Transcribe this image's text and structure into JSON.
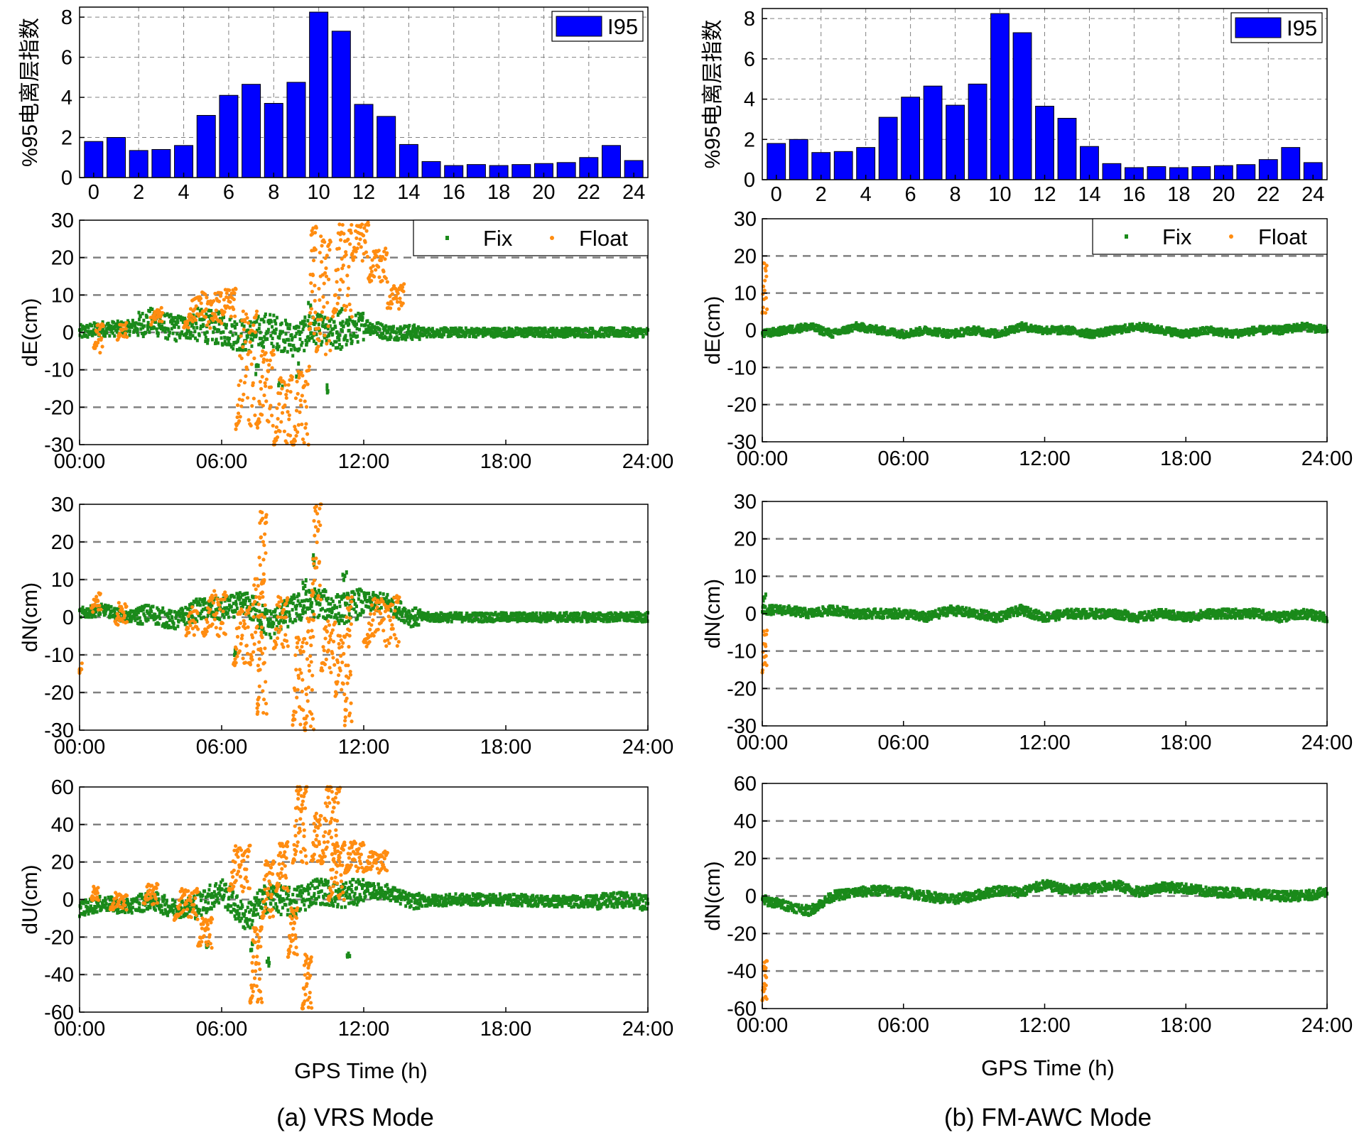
{
  "figure": {
    "caption_left": "(a) VRS Mode",
    "caption_right": "(b) FM-AWC Mode",
    "xlabel": "GPS Time (h)"
  },
  "colors": {
    "bar": "#0000ff",
    "fix": "#1a8a1a",
    "float": "#ff8c10",
    "grid": "#808080"
  },
  "chart_data": [
    {
      "id": "a-bar",
      "type": "bar",
      "panel": "left",
      "row": 0,
      "ylabel": "%95电离层指数",
      "categories": [
        "0",
        "1",
        "2",
        "3",
        "4",
        "5",
        "6",
        "7",
        "8",
        "9",
        "10",
        "11",
        "12",
        "13",
        "14",
        "15",
        "16",
        "17",
        "18",
        "19",
        "20",
        "21",
        "22",
        "23",
        "24"
      ],
      "series": [
        {
          "name": "I95",
          "values": [
            1.8,
            2.0,
            1.35,
            1.4,
            1.6,
            3.1,
            4.1,
            4.65,
            3.7,
            4.75,
            8.25,
            7.3,
            3.65,
            3.05,
            1.65,
            0.8,
            0.6,
            0.65,
            0.6,
            0.65,
            0.7,
            0.75,
            1.0,
            1.6,
            0.85
          ]
        }
      ],
      "xticks": [
        "0",
        "2",
        "4",
        "6",
        "8",
        "10",
        "12",
        "14",
        "16",
        "18",
        "20",
        "22",
        "24"
      ],
      "ylim": [
        0,
        8.5
      ],
      "yticks": [
        0,
        2,
        4,
        6,
        8
      ]
    },
    {
      "id": "a-de",
      "type": "scatter",
      "panel": "left",
      "row": 1,
      "ylabel": "dE(cm)",
      "xlim": [
        0,
        24
      ],
      "ylim": [
        -30,
        30
      ],
      "yticks": [
        -30,
        -20,
        -10,
        0,
        10,
        20,
        30
      ],
      "xticks": [
        "00:00",
        "06:00",
        "12:00",
        "18:00",
        "24:00"
      ],
      "legend": [
        "Fix",
        "Float"
      ],
      "fix_profile": [
        [
          0,
          0
        ],
        [
          1,
          1
        ],
        [
          2,
          1
        ],
        [
          3,
          3
        ],
        [
          4,
          1
        ],
        [
          5,
          2
        ],
        [
          6,
          1
        ],
        [
          7,
          -1
        ],
        [
          8,
          1
        ],
        [
          9,
          -2
        ],
        [
          10,
          1
        ],
        [
          11,
          -1
        ],
        [
          12,
          2
        ],
        [
          13,
          0
        ],
        [
          14,
          0
        ],
        [
          16,
          0
        ],
        [
          18,
          0
        ],
        [
          20,
          0
        ],
        [
          22,
          0
        ],
        [
          24,
          0
        ]
      ],
      "fix_noise": [
        2.0,
        3.5,
        4.5,
        4.5,
        4.0,
        2.0,
        1.2,
        1.2,
        1.2,
        1.2
      ],
      "fix_spikes": [
        [
          7.5,
          -10
        ],
        [
          8.5,
          -15
        ],
        [
          9.2,
          -10
        ],
        [
          10.5,
          -14
        ],
        [
          9.7,
          6
        ],
        [
          11.0,
          5
        ]
      ],
      "float_ranges": [
        [
          0.6,
          1.0,
          -5,
          2
        ],
        [
          1.6,
          2.0,
          -1,
          2
        ],
        [
          3,
          3.5,
          3,
          6
        ],
        [
          4.4,
          6,
          2,
          10
        ],
        [
          6,
          6.6,
          5,
          11
        ],
        [
          6.6,
          7.5,
          -25,
          5
        ],
        [
          7.5,
          8.2,
          -25,
          -5
        ],
        [
          8.2,
          9,
          -30,
          -12
        ],
        [
          9.0,
          9.7,
          -30,
          -10
        ],
        [
          9.7,
          10.0,
          0,
          28
        ],
        [
          10.0,
          10.6,
          -5,
          25
        ],
        [
          10.7,
          11.5,
          5,
          28
        ],
        [
          11.5,
          12.2,
          20,
          29
        ],
        [
          12.2,
          13.0,
          14,
          22
        ],
        [
          13.0,
          13.7,
          7,
          12
        ]
      ]
    },
    {
      "id": "a-dn",
      "type": "scatter",
      "panel": "left",
      "row": 2,
      "ylabel": "dN(cm)",
      "xlim": [
        0,
        24
      ],
      "ylim": [
        -30,
        30
      ],
      "yticks": [
        -30,
        -20,
        -10,
        0,
        10,
        20,
        30
      ],
      "xticks": [
        "00:00",
        "06:00",
        "12:00",
        "18:00",
        "24:00"
      ],
      "fix_profile": [
        [
          0,
          1
        ],
        [
          1,
          2
        ],
        [
          2,
          0
        ],
        [
          3,
          1
        ],
        [
          4,
          -1
        ],
        [
          5,
          2
        ],
        [
          6,
          2
        ],
        [
          7,
          4
        ],
        [
          8,
          -2
        ],
        [
          9,
          2
        ],
        [
          10,
          4
        ],
        [
          11,
          2
        ],
        [
          12,
          4
        ],
        [
          13,
          4
        ],
        [
          14,
          0
        ],
        [
          16,
          0
        ],
        [
          18,
          0
        ],
        [
          20,
          0
        ],
        [
          22,
          0
        ],
        [
          24,
          0
        ]
      ],
      "fix_noise": [
        1.5,
        2.5,
        3.0,
        4.0,
        4.0,
        2.5,
        1.2,
        1.2,
        1.2,
        1.2
      ],
      "fix_spikes": [
        [
          6.5,
          -10
        ],
        [
          9.5,
          8
        ],
        [
          9.9,
          16
        ],
        [
          11.2,
          10
        ]
      ],
      "float_ranges": [
        [
          -0.1,
          0.1,
          -15,
          -13
        ],
        [
          0.5,
          0.9,
          2,
          6
        ],
        [
          1.5,
          2.0,
          -2,
          3
        ],
        [
          4.5,
          5.0,
          -4,
          2
        ],
        [
          5.2,
          6.2,
          -5,
          6
        ],
        [
          6.5,
          7.2,
          -13,
          2
        ],
        [
          7.2,
          7.8,
          -12,
          10
        ],
        [
          7.5,
          7.9,
          -25,
          28
        ],
        [
          8.2,
          8.8,
          -8,
          5
        ],
        [
          9.0,
          9.5,
          -28,
          -5
        ],
        [
          9.5,
          9.9,
          -30,
          0
        ],
        [
          9.8,
          10.2,
          5,
          30
        ],
        [
          10.2,
          10.8,
          -14,
          -2
        ],
        [
          10.8,
          11.2,
          -20,
          -5
        ],
        [
          11.2,
          11.5,
          -28,
          5
        ],
        [
          12.0,
          13.5,
          -7,
          5
        ]
      ]
    },
    {
      "id": "a-du",
      "type": "scatter",
      "panel": "left",
      "row": 3,
      "ylabel": "dU(cm)",
      "xlim": [
        0,
        24
      ],
      "ylim": [
        -60,
        60
      ],
      "yticks": [
        -60,
        -40,
        -20,
        0,
        20,
        40,
        60
      ],
      "xticks": [
        "00:00",
        "06:00",
        "12:00",
        "18:00",
        "24:00"
      ],
      "fix_profile": [
        [
          0,
          -5
        ],
        [
          1,
          -2
        ],
        [
          2,
          -4
        ],
        [
          3,
          0
        ],
        [
          4,
          -5
        ],
        [
          5,
          -3
        ],
        [
          6,
          5
        ],
        [
          7,
          -10
        ],
        [
          8,
          2
        ],
        [
          9,
          -2
        ],
        [
          10,
          5
        ],
        [
          11,
          2
        ],
        [
          12,
          5
        ],
        [
          13,
          4
        ],
        [
          14,
          -1
        ],
        [
          16,
          0
        ],
        [
          18,
          0
        ],
        [
          20,
          -1
        ],
        [
          22,
          -1
        ],
        [
          23,
          0
        ],
        [
          24,
          -2
        ]
      ],
      "fix_noise": [
        4,
        5,
        7,
        8,
        7,
        4,
        3,
        3,
        3,
        4
      ],
      "fix_spikes": [
        [
          5.4,
          -25
        ],
        [
          7.3,
          -25
        ],
        [
          8.0,
          -33
        ],
        [
          11.4,
          -30
        ]
      ],
      "float_ranges": [
        [
          0.5,
          0.8,
          0,
          6
        ],
        [
          1.3,
          2.0,
          -5,
          3
        ],
        [
          2.7,
          3.3,
          -2,
          8
        ],
        [
          4.0,
          5.0,
          -10,
          5
        ],
        [
          5.0,
          5.6,
          -25,
          -10
        ],
        [
          6.3,
          7.2,
          5,
          28
        ],
        [
          7.2,
          7.7,
          -55,
          -15
        ],
        [
          7.7,
          8.2,
          -10,
          20
        ],
        [
          8.3,
          8.8,
          5,
          30
        ],
        [
          8.8,
          9.2,
          -30,
          -5
        ],
        [
          9.0,
          9.6,
          20,
          60
        ],
        [
          9.4,
          9.8,
          -58,
          -30
        ],
        [
          9.8,
          10.2,
          20,
          45
        ],
        [
          10.2,
          11.0,
          20,
          60
        ],
        [
          10.5,
          11.2,
          0,
          30
        ],
        [
          11.2,
          12.0,
          15,
          30
        ],
        [
          12.0,
          13.0,
          15,
          25
        ]
      ]
    },
    {
      "id": "b-bar",
      "type": "bar",
      "panel": "right",
      "row": 0,
      "ylabel": "%95电离层指数",
      "categories": [
        "0",
        "1",
        "2",
        "3",
        "4",
        "5",
        "6",
        "7",
        "8",
        "9",
        "10",
        "11",
        "12",
        "13",
        "14",
        "15",
        "16",
        "17",
        "18",
        "19",
        "20",
        "21",
        "22",
        "23",
        "24"
      ],
      "series": [
        {
          "name": "I95",
          "values": [
            1.8,
            2.0,
            1.35,
            1.4,
            1.6,
            3.1,
            4.1,
            4.65,
            3.7,
            4.75,
            8.25,
            7.3,
            3.65,
            3.05,
            1.65,
            0.8,
            0.6,
            0.65,
            0.6,
            0.65,
            0.7,
            0.75,
            1.0,
            1.6,
            0.85
          ]
        }
      ],
      "xticks": [
        "0",
        "2",
        "4",
        "6",
        "8",
        "10",
        "12",
        "14",
        "16",
        "18",
        "20",
        "22",
        "24"
      ],
      "ylim": [
        0,
        8.5
      ],
      "yticks": [
        0,
        2,
        4,
        6,
        8
      ]
    },
    {
      "id": "b-de",
      "type": "scatter",
      "panel": "right",
      "row": 1,
      "ylabel": "dE(cm)",
      "xlim": [
        0,
        24
      ],
      "ylim": [
        -30,
        30
      ],
      "yticks": [
        -30,
        -20,
        -10,
        0,
        10,
        20,
        30
      ],
      "xticks": [
        "00:00",
        "06:00",
        "12:00",
        "18:00",
        "24:00"
      ],
      "legend": [
        "Fix",
        "Float"
      ],
      "fix_profile": [
        [
          0,
          -1
        ],
        [
          1,
          0
        ],
        [
          2,
          1
        ],
        [
          3,
          -1
        ],
        [
          4,
          1
        ],
        [
          5,
          0
        ],
        [
          6,
          -1
        ],
        [
          7,
          0
        ],
        [
          8,
          -1
        ],
        [
          9,
          0
        ],
        [
          10,
          -1
        ],
        [
          11,
          1
        ],
        [
          12,
          0
        ],
        [
          13,
          0
        ],
        [
          14,
          -1
        ],
        [
          15,
          0
        ],
        [
          16,
          1
        ],
        [
          17,
          0
        ],
        [
          18,
          -1
        ],
        [
          19,
          0
        ],
        [
          20,
          -1
        ],
        [
          21,
          0
        ],
        [
          22,
          0
        ],
        [
          23,
          1
        ],
        [
          24,
          0
        ]
      ],
      "fix_noise": [
        1,
        1,
        1,
        1,
        1,
        1,
        1,
        1,
        1,
        1
      ],
      "fix_spikes": [],
      "float_ranges": [
        [
          0.0,
          0.2,
          5,
          18
        ]
      ]
    },
    {
      "id": "b-dn",
      "type": "scatter",
      "panel": "right",
      "row": 2,
      "ylabel": "dN(cm)",
      "xlim": [
        0,
        24
      ],
      "ylim": [
        -30,
        30
      ],
      "yticks": [
        -30,
        -20,
        -10,
        0,
        10,
        20,
        30
      ],
      "xticks": [
        "00:00",
        "06:00",
        "12:00",
        "18:00",
        "24:00"
      ],
      "fix_profile": [
        [
          0,
          1
        ],
        [
          1,
          1
        ],
        [
          2,
          0
        ],
        [
          3,
          1
        ],
        [
          4,
          0
        ],
        [
          5,
          0
        ],
        [
          6,
          0
        ],
        [
          7,
          -1
        ],
        [
          8,
          1
        ],
        [
          9,
          0
        ],
        [
          10,
          -1
        ],
        [
          11,
          1
        ],
        [
          12,
          -1
        ],
        [
          13,
          0
        ],
        [
          14,
          0
        ],
        [
          15,
          0
        ],
        [
          16,
          -1
        ],
        [
          17,
          0
        ],
        [
          18,
          -1
        ],
        [
          19,
          0
        ],
        [
          20,
          0
        ],
        [
          21,
          0
        ],
        [
          22,
          -1
        ],
        [
          23,
          0
        ],
        [
          24,
          -1
        ]
      ],
      "fix_noise": [
        1.2,
        1.2,
        1.2,
        1.2,
        1.2,
        1.2,
        1.2,
        1.2,
        1.2,
        1.2
      ],
      "fix_spikes": [
        [
          0.1,
          4
        ]
      ],
      "float_ranges": [
        [
          0.0,
          0.2,
          -15,
          -5
        ]
      ]
    },
    {
      "id": "b-du",
      "type": "scatter",
      "panel": "right",
      "row": 3,
      "ylabel": "dN(cm)",
      "xlim": [
        0,
        24
      ],
      "ylim": [
        -60,
        60
      ],
      "yticks": [
        -60,
        -40,
        -20,
        0,
        20,
        40,
        60
      ],
      "xticks": [
        "00:00",
        "06:00",
        "12:00",
        "18:00",
        "24:00"
      ],
      "fix_profile": [
        [
          0,
          -2
        ],
        [
          1,
          -5
        ],
        [
          2,
          -8
        ],
        [
          3,
          0
        ],
        [
          4,
          2
        ],
        [
          5,
          3
        ],
        [
          6,
          2
        ],
        [
          7,
          0
        ],
        [
          8,
          -2
        ],
        [
          9,
          0
        ],
        [
          10,
          3
        ],
        [
          11,
          2
        ],
        [
          12,
          6
        ],
        [
          13,
          3
        ],
        [
          14,
          4
        ],
        [
          15,
          6
        ],
        [
          16,
          2
        ],
        [
          17,
          5
        ],
        [
          18,
          4
        ],
        [
          19,
          2
        ],
        [
          20,
          2
        ],
        [
          21,
          1
        ],
        [
          22,
          0
        ],
        [
          23,
          0
        ],
        [
          24,
          2
        ]
      ],
      "fix_noise": [
        2.5,
        2.5,
        2.5,
        2.5,
        2.5,
        2.5,
        2.5,
        2.5,
        2.5,
        2.5
      ],
      "fix_spikes": [],
      "float_ranges": [
        [
          0.0,
          0.2,
          -55,
          -35
        ]
      ]
    }
  ]
}
